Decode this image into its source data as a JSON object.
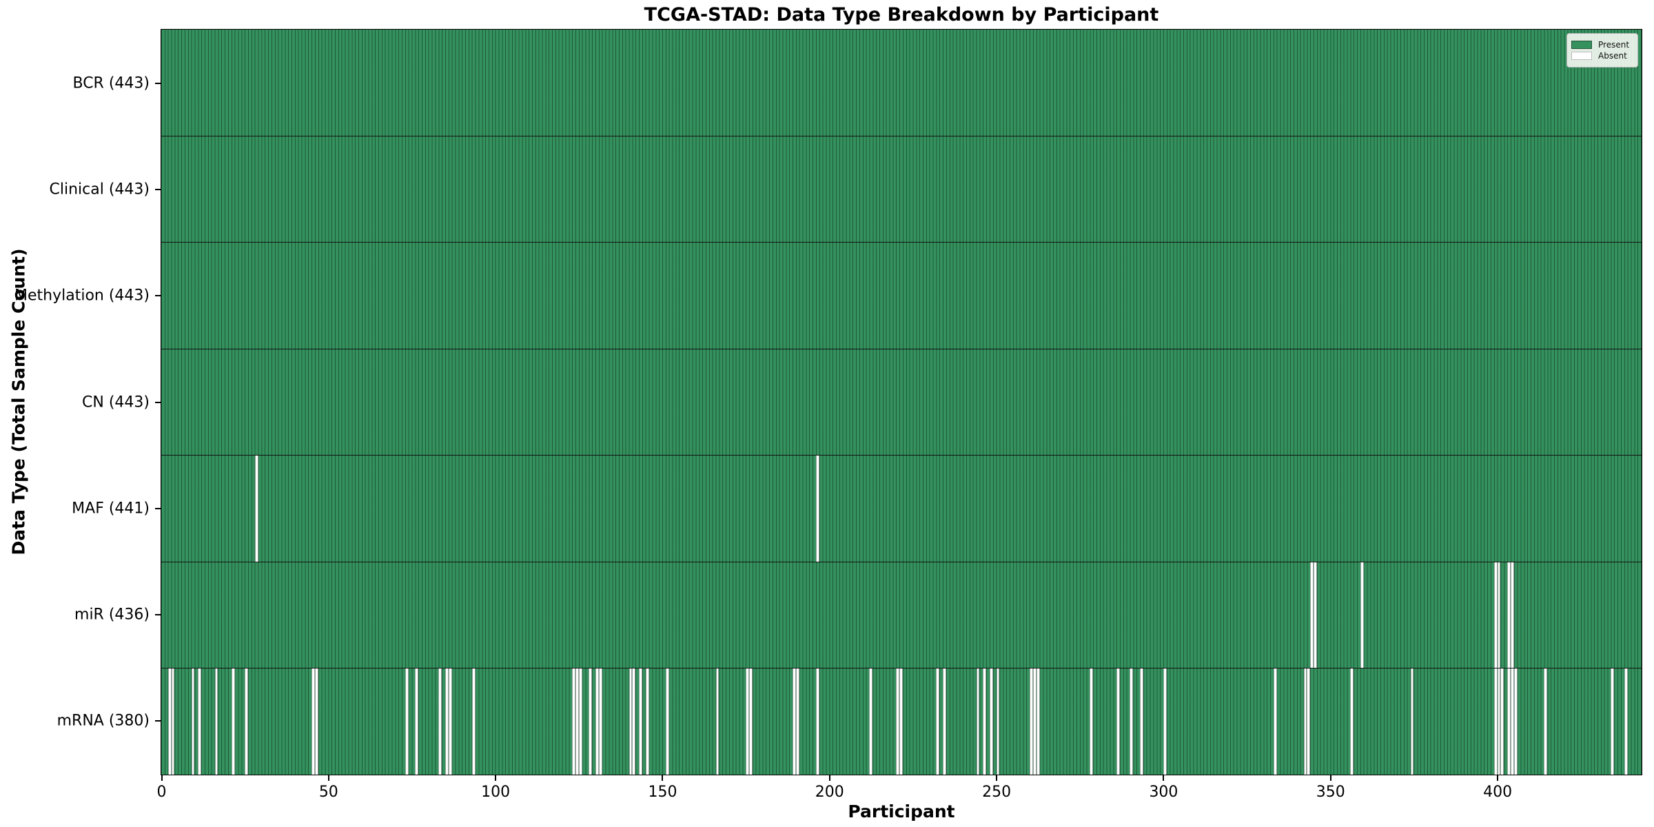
{
  "colors": {
    "present": "#35925E",
    "absent": "#FFFFFF",
    "cell_edge": "rgba(8,42,26,0.55)",
    "row_divider": "#121212",
    "axis": "#000000",
    "legend_background": "rgba(250,250,246,0.88)",
    "legend_border": "#B6B6B6"
  },
  "chart_data": {
    "type": "heatmap",
    "title": "TCGA-STAD: Data Type Breakdown by Participant",
    "xlabel": "Participant",
    "ylabel": "Data Type (Total Sample Count)",
    "legend": [
      "Present",
      "Absent"
    ],
    "legend_position": "upper right",
    "grid": false,
    "n_participants": 443,
    "x_range": [
      0,
      443
    ],
    "x_ticks": [
      0,
      50,
      100,
      150,
      200,
      250,
      300,
      350,
      400
    ],
    "cell_values": "1 = Present (green), 0 = Absent (white)",
    "rows": [
      {
        "short": "bcr",
        "label": "BCR (443)",
        "name": "BCR",
        "total": 443,
        "absent": []
      },
      {
        "short": "clinical",
        "label": "Clinical (443)",
        "name": "Clinical",
        "total": 443,
        "absent": []
      },
      {
        "short": "methylation",
        "label": "Methylation (443)",
        "name": "Methylation",
        "total": 443,
        "absent": []
      },
      {
        "short": "cn",
        "label": "CN (443)",
        "name": "CN",
        "total": 443,
        "absent": []
      },
      {
        "short": "maf",
        "label": "MAF (441)",
        "name": "MAF",
        "total": 441,
        "absent": [
          28,
          196
        ]
      },
      {
        "short": "mir",
        "label": "miR (436)",
        "name": "miR",
        "total": 436,
        "absent": [
          344,
          345,
          359,
          399,
          400,
          403,
          404
        ]
      },
      {
        "short": "mrna",
        "label": "mRNA (380)",
        "name": "mRNA",
        "total": 380,
        "absent": [
          2,
          3,
          9,
          11,
          16,
          21,
          25,
          45,
          46,
          73,
          76,
          83,
          85,
          86,
          93,
          123,
          124,
          125,
          128,
          130,
          131,
          140,
          141,
          143,
          145,
          151,
          166,
          175,
          176,
          189,
          190,
          196,
          212,
          220,
          221,
          232,
          234,
          244,
          246,
          248,
          250,
          260,
          261,
          262,
          278,
          286,
          290,
          293,
          300,
          333,
          342,
          343,
          356,
          374,
          399,
          400,
          401,
          403,
          404,
          405,
          414,
          434,
          438
        ]
      }
    ]
  }
}
